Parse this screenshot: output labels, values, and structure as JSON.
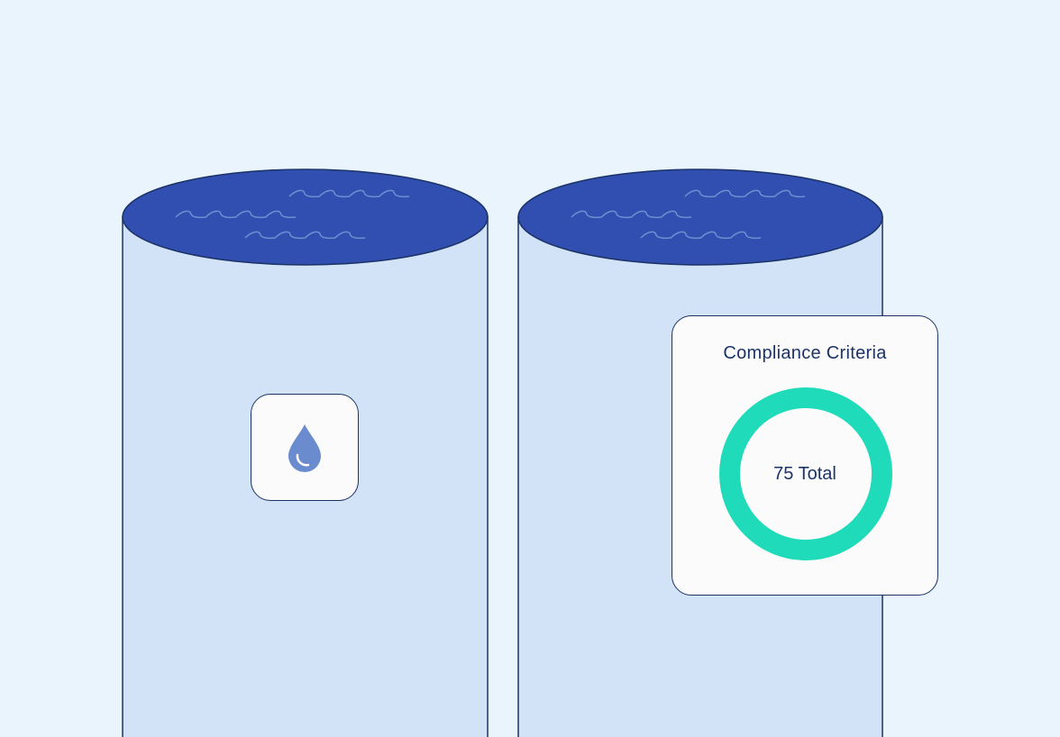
{
  "colors": {
    "background": "#eaf4fd",
    "tank_body": "#d3e3f7",
    "tank_top": "#304fb0",
    "outline": "#1b3366",
    "ring": "#1fdbb9",
    "drop": "#6a8bcd"
  },
  "icons": {
    "drop_card": "water-drop-icon"
  },
  "compliance_card": {
    "title": "Compliance Criteria",
    "total_label": "75 Total",
    "ring_fill_percent": 100
  }
}
